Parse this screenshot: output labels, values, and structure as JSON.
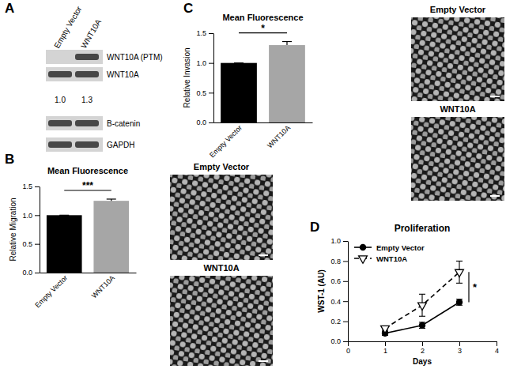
{
  "chart_data": [
    {
      "type": "bar",
      "title": "Mean Fluorescence",
      "ylabel": "Relative Migration",
      "categories": [
        "Empty Vector",
        "WNT10A"
      ],
      "values": [
        1.0,
        1.25
      ],
      "errors": [
        0,
        0.03
      ],
      "colors": [
        "#000000",
        "#a6a6a6"
      ],
      "ylim": [
        0,
        1.5
      ],
      "yticks": [
        {
          "value": 0,
          "label": "0.0"
        },
        {
          "value": 0.5,
          "label": "0.5"
        },
        {
          "value": 1,
          "label": "1.0"
        },
        {
          "value": 1.5,
          "label": "1.5"
        }
      ],
      "annotations": [
        "***"
      ]
    },
    {
      "type": "bar",
      "title": "Mean Fluorescence",
      "ylabel": "Relative Invasion",
      "categories": [
        "Empty Vector",
        "WNT10A"
      ],
      "values": [
        1.0,
        1.3
      ],
      "errors": [
        0,
        0.06
      ],
      "colors": [
        "#000000",
        "#a6a6a6"
      ],
      "ylim": [
        0,
        1.5
      ],
      "yticks": [
        {
          "value": 0,
          "label": "0.0"
        },
        {
          "value": 0.5,
          "label": "0.5"
        },
        {
          "value": 1,
          "label": "1.0"
        },
        {
          "value": 1.5,
          "label": "1.5"
        }
      ],
      "annotations": [
        "*"
      ]
    },
    {
      "type": "line",
      "title": "Proliferation",
      "xlabel": "Days",
      "ylabel": "WST-1 (AU)",
      "x": [
        1,
        2,
        3
      ],
      "series": [
        {
          "name": "Empty Vector",
          "color": "#000000",
          "marker": "circle",
          "line_style": "solid",
          "values": [
            0.08,
            0.16,
            0.39
          ],
          "errors": [
            0.02,
            0.03,
            0.03
          ]
        },
        {
          "name": "WNT10A",
          "color": "#000000",
          "marker": "triangle-down-open",
          "line_style": "dashed",
          "values": [
            0.13,
            0.36,
            0.69
          ],
          "errors": [
            0.02,
            0.11,
            0.11
          ]
        }
      ],
      "xlim": [
        0,
        4
      ],
      "xticks": [
        0,
        1,
        2,
        3,
        4
      ],
      "ylim": [
        0,
        1
      ],
      "yticks": [
        {
          "value": 0,
          "label": "0.0"
        },
        {
          "value": 0.2,
          "label": "0.2"
        },
        {
          "value": 0.4,
          "label": "0.4"
        },
        {
          "value": 0.6,
          "label": "0.6"
        },
        {
          "value": 0.8,
          "label": "0.8"
        },
        {
          "value": 1,
          "label": "1.0"
        }
      ],
      "legend": "upper left",
      "annotations": [
        "*"
      ]
    }
  ],
  "panel_labels": [
    "A",
    "B",
    "C",
    "D"
  ],
  "blot": {
    "lanes": [
      "Empty Vector",
      "WNT10A"
    ],
    "rows": [
      {
        "label": "WNT10A (PTM)",
        "bands": [
          false,
          true
        ]
      },
      {
        "label": "WNT10A",
        "bands": [
          true,
          true
        ]
      },
      {
        "label": "B-catenin",
        "bands": [
          true,
          true
        ]
      },
      {
        "label": "GAPDH",
        "bands": [
          true,
          true
        ]
      }
    ],
    "quantification": [
      "1.0",
      "1.3"
    ]
  },
  "micrographs": [
    [
      "Empty Vector",
      "WNT10A"
    ],
    [
      "Empty Vector",
      "WNT10A"
    ]
  ]
}
